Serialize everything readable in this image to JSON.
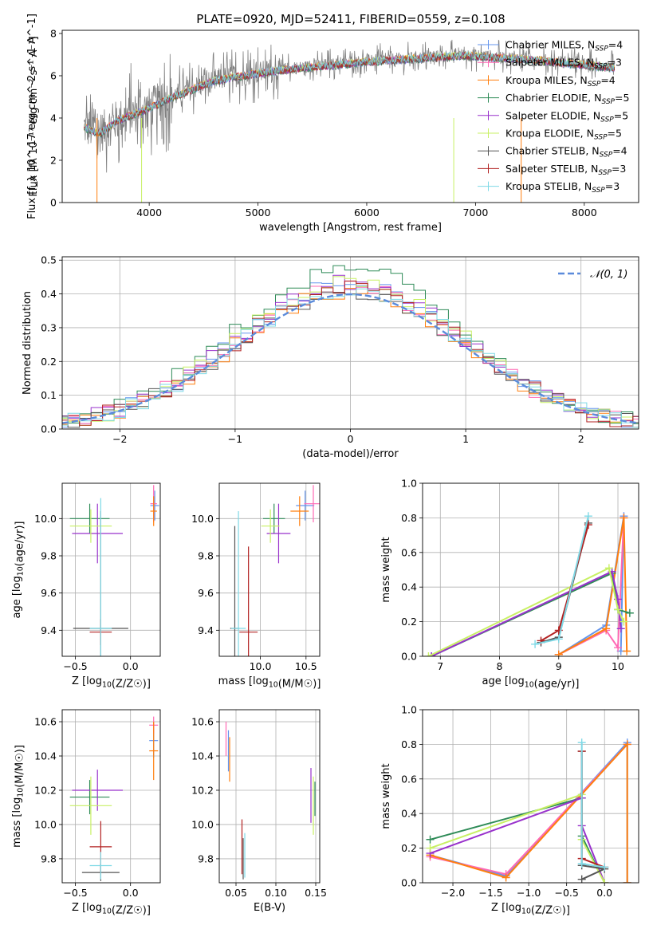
{
  "figure": {
    "title": "PLATE=0920, MJD=52411, FIBERID=0559, z=0.108"
  },
  "colors": {
    "data": "#808080",
    "Chabrier MILES": "#6495ed",
    "Salpeter MILES": "#ff69b4",
    "Kroupa MILES": "#ff7f0e",
    "Chabrier ELODIE": "#2e8b57",
    "Salpeter ELODIE": "#9932cc",
    "Kroupa ELODIE": "#c8f064",
    "Chabrier STELIB": "#555555",
    "Salpeter STELIB": "#b22222",
    "Kroupa STELIB": "#7fd9e6",
    "gaussian": "#5b8bdb"
  },
  "chart_data": [
    {
      "id": "spectrum",
      "type": "line",
      "xlabel": "wavelength [Angstrom, rest frame]",
      "ylabel": "Flux [f_λ 10^-17 erg cm^-2 s^-1 A^-1]",
      "xlim": [
        3200,
        8500
      ],
      "ylim": [
        0,
        8.15
      ],
      "xticks": [
        4000,
        5000,
        6000,
        7000,
        8000
      ],
      "yticks": [
        0,
        2,
        4,
        6,
        8
      ],
      "legend": "top-right",
      "legend_entries": [
        {
          "name": "Chabrier MILES",
          "sub": "SSP",
          "n": 4
        },
        {
          "name": "Salpeter MILES",
          "sub": "SSP",
          "n": 3
        },
        {
          "name": "Kroupa MILES",
          "sub": "SSP",
          "n": 4
        },
        {
          "name": "Chabrier ELODIE",
          "sub": "SSP",
          "n": 5
        },
        {
          "name": "Salpeter ELODIE",
          "sub": "SSP",
          "n": 5
        },
        {
          "name": "Kroupa ELODIE",
          "sub": "SSP",
          "n": 5
        },
        {
          "name": "Chabrier STELIB",
          "sub": "SSP",
          "n": 4
        },
        {
          "name": "Salpeter STELIB",
          "sub": "SSP",
          "n": 3
        },
        {
          "name": "Kroupa STELIB",
          "sub": "SSP",
          "n": 3
        }
      ],
      "continuum": [
        [
          3400,
          3.6
        ],
        [
          3550,
          3.3
        ],
        [
          3700,
          3.9
        ],
        [
          3800,
          4.1
        ],
        [
          3900,
          4.3
        ],
        [
          4000,
          4.5
        ],
        [
          4200,
          5.0
        ],
        [
          4400,
          5.4
        ],
        [
          4600,
          5.8
        ],
        [
          4800,
          6.0
        ],
        [
          5000,
          6.15
        ],
        [
          5200,
          6.3
        ],
        [
          5500,
          6.45
        ],
        [
          5800,
          6.6
        ],
        [
          6000,
          6.7
        ],
        [
          6300,
          6.8
        ],
        [
          6600,
          6.9
        ],
        [
          6900,
          7.0
        ],
        [
          7200,
          6.9
        ],
        [
          7500,
          6.8
        ],
        [
          7800,
          6.65
        ],
        [
          8000,
          6.55
        ],
        [
          8300,
          6.4
        ]
      ]
    },
    {
      "id": "residuals",
      "type": "histogram",
      "xlabel": "(data-model)/error",
      "ylabel": "Normed distribution",
      "xlim": [
        -2.5,
        2.5
      ],
      "ylim": [
        0,
        0.51
      ],
      "xticks": [
        -2,
        -1,
        0,
        1,
        2
      ],
      "yticks": [
        0.0,
        0.1,
        0.2,
        0.3,
        0.4,
        0.5
      ],
      "legend": "top-right",
      "legend_entries": [
        "𝒩(0, 1)"
      ],
      "bin_width": 0.1,
      "series": [
        {
          "name": "Chabrier MILES",
          "peak": 0.44
        },
        {
          "name": "Salpeter MILES",
          "peak": 0.43
        },
        {
          "name": "Kroupa MILES",
          "peak": 0.42
        },
        {
          "name": "Chabrier ELODIE",
          "peak": 0.49
        },
        {
          "name": "Salpeter ELODIE",
          "peak": 0.45
        },
        {
          "name": "Kroupa ELODIE",
          "peak": 0.45
        },
        {
          "name": "Chabrier STELIB",
          "peak": 0.42
        },
        {
          "name": "Salpeter STELIB",
          "peak": 0.43
        },
        {
          "name": "Kroupa STELIB",
          "peak": 0.43
        }
      ]
    },
    {
      "id": "age_vs_Z",
      "type": "errorbar",
      "xlabel": "Z [log10(Z/Z☉)]",
      "ylabel": "age  [log10(age/yr)]",
      "xlim": [
        -0.62,
        0.27
      ],
      "ylim": [
        9.26,
        10.19
      ],
      "xticks": [
        -0.5,
        0.0
      ],
      "yticks": [
        9.4,
        9.6,
        9.8,
        10.0
      ],
      "points": [
        {
          "series": "Chabrier MILES",
          "x": 0.22,
          "y": 10.07,
          "xerr": 0.04,
          "yerr": 0.08
        },
        {
          "series": "Salpeter MILES",
          "x": 0.21,
          "y": 10.08,
          "xerr": 0.03,
          "yerr": 0.1
        },
        {
          "series": "Kroupa MILES",
          "x": 0.21,
          "y": 10.04,
          "xerr": 0.03,
          "yerr": 0.08
        },
        {
          "series": "Chabrier ELODIE",
          "x": -0.37,
          "y": 10.0,
          "xerr": 0.18,
          "yerr": 0.08
        },
        {
          "series": "Salpeter ELODIE",
          "x": -0.3,
          "y": 9.92,
          "xerr": 0.23,
          "yerr": 0.16
        },
        {
          "series": "Kroupa ELODIE",
          "x": -0.36,
          "y": 9.96,
          "xerr": 0.19,
          "yerr": 0.09
        },
        {
          "series": "Chabrier STELIB",
          "x": -0.27,
          "y": 9.41,
          "xerr": 0.25,
          "yerr": 0.63
        },
        {
          "series": "Salpeter STELIB",
          "x": -0.27,
          "y": 9.39,
          "xerr": 0.1,
          "yerr": 0.07
        },
        {
          "series": "Kroupa STELIB",
          "x": -0.27,
          "y": 9.41,
          "xerr": 0.1,
          "yerr": 0.7
        }
      ]
    },
    {
      "id": "age_vs_mass",
      "type": "errorbar",
      "xlabel": "mass [log10(M/M☉)]",
      "ylabel": "",
      "xlim": [
        9.55,
        10.65
      ],
      "ylim": [
        9.26,
        10.19
      ],
      "xticks": [
        10.0,
        10.5
      ],
      "yticks": [
        9.4,
        9.6,
        9.8,
        10.0
      ],
      "points": [
        {
          "series": "Chabrier MILES",
          "x": 10.49,
          "y": 10.07,
          "xerr": 0.1,
          "yerr": 0.08
        },
        {
          "series": "Salpeter MILES",
          "x": 10.58,
          "y": 10.08,
          "xerr": 0.1,
          "yerr": 0.1
        },
        {
          "series": "Kroupa MILES",
          "x": 10.43,
          "y": 10.04,
          "xerr": 0.1,
          "yerr": 0.08
        },
        {
          "series": "Chabrier ELODIE",
          "x": 10.15,
          "y": 10.0,
          "xerr": 0.12,
          "yerr": 0.08
        },
        {
          "series": "Salpeter ELODIE",
          "x": 10.2,
          "y": 9.92,
          "xerr": 0.13,
          "yerr": 0.16
        },
        {
          "series": "Kroupa ELODIE",
          "x": 10.11,
          "y": 9.96,
          "xerr": 0.1,
          "yerr": 0.09
        },
        {
          "series": "Chabrier STELIB",
          "x": 9.72,
          "y": 9.41,
          "xerr": 0.05,
          "yerr": 0.55
        },
        {
          "series": "Salpeter STELIB",
          "x": 9.87,
          "y": 9.39,
          "xerr": 0.1,
          "yerr": 0.46
        },
        {
          "series": "Kroupa STELIB",
          "x": 9.76,
          "y": 9.41,
          "xerr": 0.08,
          "yerr": 0.63
        }
      ]
    },
    {
      "id": "mass_vs_Z",
      "type": "errorbar",
      "xlabel": "Z [log10(Z/Z☉)]",
      "ylabel": "mass [log10(M/M☉)]",
      "xlim": [
        -0.62,
        0.27
      ],
      "ylim": [
        9.66,
        10.67
      ],
      "xticks": [
        -0.5,
        0.0
      ],
      "yticks": [
        9.8,
        10.0,
        10.2,
        10.4,
        10.6
      ],
      "points": [
        {
          "series": "Chabrier MILES",
          "x": 0.21,
          "y": 10.49,
          "xerr": 0.04,
          "yerr": 0.1
        },
        {
          "series": "Salpeter MILES",
          "x": 0.21,
          "y": 10.58,
          "xerr": 0.04,
          "yerr": 0.05
        },
        {
          "series": "Kroupa MILES",
          "x": 0.21,
          "y": 10.43,
          "xerr": 0.04,
          "yerr": 0.17
        },
        {
          "series": "Chabrier ELODIE",
          "x": -0.37,
          "y": 10.16,
          "xerr": 0.18,
          "yerr": 0.1
        },
        {
          "series": "Salpeter ELODIE",
          "x": -0.3,
          "y": 10.2,
          "xerr": 0.23,
          "yerr": 0.12
        },
        {
          "series": "Kroupa ELODIE",
          "x": -0.36,
          "y": 10.11,
          "xerr": 0.19,
          "yerr": 0.17
        },
        {
          "series": "Chabrier STELIB",
          "x": -0.27,
          "y": 9.72,
          "xerr": 0.17,
          "yerr": 0.05
        },
        {
          "series": "Salpeter STELIB",
          "x": -0.27,
          "y": 9.87,
          "xerr": 0.1,
          "yerr": 0.15
        },
        {
          "series": "Kroupa STELIB",
          "x": -0.27,
          "y": 9.76,
          "xerr": 0.1,
          "yerr": 0.08
        }
      ]
    },
    {
      "id": "mass_vs_EBV",
      "type": "errorbar",
      "xlabel": "E(B-V)",
      "ylabel": "",
      "xlim": [
        0.029,
        0.155
      ],
      "ylim": [
        9.66,
        10.67
      ],
      "xticks": [
        0.05,
        0.1,
        0.15
      ],
      "yticks": [
        9.8,
        10.0,
        10.2,
        10.4,
        10.6
      ],
      "points": [
        {
          "series": "Chabrier MILES",
          "x": 0.0405,
          "y": 10.43,
          "xerr": 0,
          "yerr": 0.12
        },
        {
          "series": "Salpeter MILES",
          "x": 0.0375,
          "y": 10.5,
          "xerr": 0,
          "yerr": 0.1
        },
        {
          "series": "Kroupa MILES",
          "x": 0.042,
          "y": 10.38,
          "xerr": 0,
          "yerr": 0.13
        },
        {
          "series": "Chabrier ELODIE",
          "x": 0.149,
          "y": 10.15,
          "xerr": 0,
          "yerr": 0.1
        },
        {
          "series": "Salpeter ELODIE",
          "x": 0.144,
          "y": 10.17,
          "xerr": 0,
          "yerr": 0.16
        },
        {
          "series": "Kroupa ELODIE",
          "x": 0.147,
          "y": 10.11,
          "xerr": 0,
          "yerr": 0.17
        },
        {
          "series": "Chabrier STELIB",
          "x": 0.059,
          "y": 9.8,
          "xerr": 0,
          "yerr": 0.12
        },
        {
          "series": "Salpeter STELIB",
          "x": 0.0575,
          "y": 9.87,
          "xerr": 0,
          "yerr": 0.16
        },
        {
          "series": "Kroupa STELIB",
          "x": 0.061,
          "y": 9.82,
          "xerr": 0,
          "yerr": 0.13
        }
      ]
    },
    {
      "id": "weights_vs_age",
      "type": "line",
      "xlabel": "age  [log10(age/yr)]",
      "ylabel": "mass weight",
      "xlim": [
        6.7,
        10.35
      ],
      "ylim": [
        0,
        1.0
      ],
      "xticks": [
        7,
        8,
        9,
        10
      ],
      "yticks": [
        0.0,
        0.2,
        0.4,
        0.6,
        0.8,
        1.0
      ],
      "series": [
        {
          "name": "Chabrier MILES",
          "x": [
            9.0,
            9.8,
            10.1,
            10.05
          ],
          "y": [
            0.01,
            0.18,
            0.81,
            0.03
          ]
        },
        {
          "name": "Salpeter MILES",
          "x": [
            9.0,
            9.8,
            10.0,
            10.1
          ],
          "y": [
            0.01,
            0.15,
            0.05,
            0.8
          ]
        },
        {
          "name": "Kroupa MILES",
          "x": [
            9.0,
            9.8,
            10.1,
            10.15
          ],
          "y": [
            0.01,
            0.16,
            0.8,
            0.03
          ]
        },
        {
          "name": "Chabrier ELODIE",
          "x": [
            6.85,
            9.9,
            10.0,
            10.2
          ],
          "y": [
            0.0,
            0.48,
            0.27,
            0.25
          ]
        },
        {
          "name": "Salpeter ELODIE",
          "x": [
            6.85,
            9.9,
            10.0,
            10.05
          ],
          "y": [
            0.0,
            0.49,
            0.33,
            0.16
          ]
        },
        {
          "name": "Kroupa ELODIE",
          "x": [
            6.8,
            9.85,
            10.0,
            10.1
          ],
          "y": [
            0.0,
            0.51,
            0.27,
            0.2
          ]
        },
        {
          "name": "Chabrier STELIB",
          "x": [
            8.7,
            9.0,
            9.5
          ],
          "y": [
            0.08,
            0.11,
            0.77
          ]
        },
        {
          "name": "Salpeter STELIB",
          "x": [
            8.7,
            9.0,
            9.5
          ],
          "y": [
            0.09,
            0.15,
            0.76
          ]
        },
        {
          "name": "Kroupa STELIB",
          "x": [
            8.6,
            9.0,
            9.5
          ],
          "y": [
            0.07,
            0.1,
            0.81
          ]
        }
      ]
    },
    {
      "id": "weights_vs_Z",
      "type": "line",
      "xlabel": "Z [log10(Z/Z☉)]",
      "ylabel": "mass weight",
      "xlim": [
        -2.4,
        0.45
      ],
      "ylim": [
        0,
        1.0
      ],
      "xticks": [
        -2.0,
        -1.5,
        -1.0,
        -0.5,
        0.0
      ],
      "yticks": [
        0.0,
        0.2,
        0.4,
        0.6,
        0.8,
        1.0
      ],
      "series": [
        {
          "name": "Chabrier MILES",
          "x": [
            -2.3,
            -1.3,
            0.3,
            0.3
          ],
          "y": [
            0.16,
            0.04,
            0.81,
            0.0
          ]
        },
        {
          "name": "Salpeter MILES",
          "x": [
            -2.3,
            -1.3,
            0.3
          ],
          "y": [
            0.15,
            0.05,
            0.8
          ]
        },
        {
          "name": "Kroupa MILES",
          "x": [
            -2.3,
            -1.3,
            0.3,
            0.3
          ],
          "y": [
            0.16,
            0.03,
            0.8,
            0.0
          ]
        },
        {
          "name": "Chabrier ELODIE",
          "x": [
            -2.3,
            -0.3,
            -0.3,
            0.0
          ],
          "y": [
            0.25,
            0.49,
            0.27,
            0.0
          ]
        },
        {
          "name": "Salpeter ELODIE",
          "x": [
            -2.3,
            -0.3,
            -0.3,
            0.0
          ],
          "y": [
            0.17,
            0.49,
            0.33,
            0.0
          ]
        },
        {
          "name": "Kroupa ELODIE",
          "x": [
            -2.3,
            -0.3,
            -0.3,
            0.0
          ],
          "y": [
            0.2,
            0.51,
            0.25,
            0.0
          ]
        },
        {
          "name": "Chabrier STELIB",
          "x": [
            -0.3,
            -0.3,
            0.0,
            -0.3
          ],
          "y": [
            0.76,
            0.1,
            0.08,
            0.02
          ]
        },
        {
          "name": "Salpeter STELIB",
          "x": [
            -0.3,
            -0.3,
            0.0
          ],
          "y": [
            0.76,
            0.14,
            0.09
          ]
        },
        {
          "name": "Kroupa STELIB",
          "x": [
            -0.3,
            -0.3,
            0.0
          ],
          "y": [
            0.81,
            0.11,
            0.09
          ]
        }
      ]
    }
  ]
}
